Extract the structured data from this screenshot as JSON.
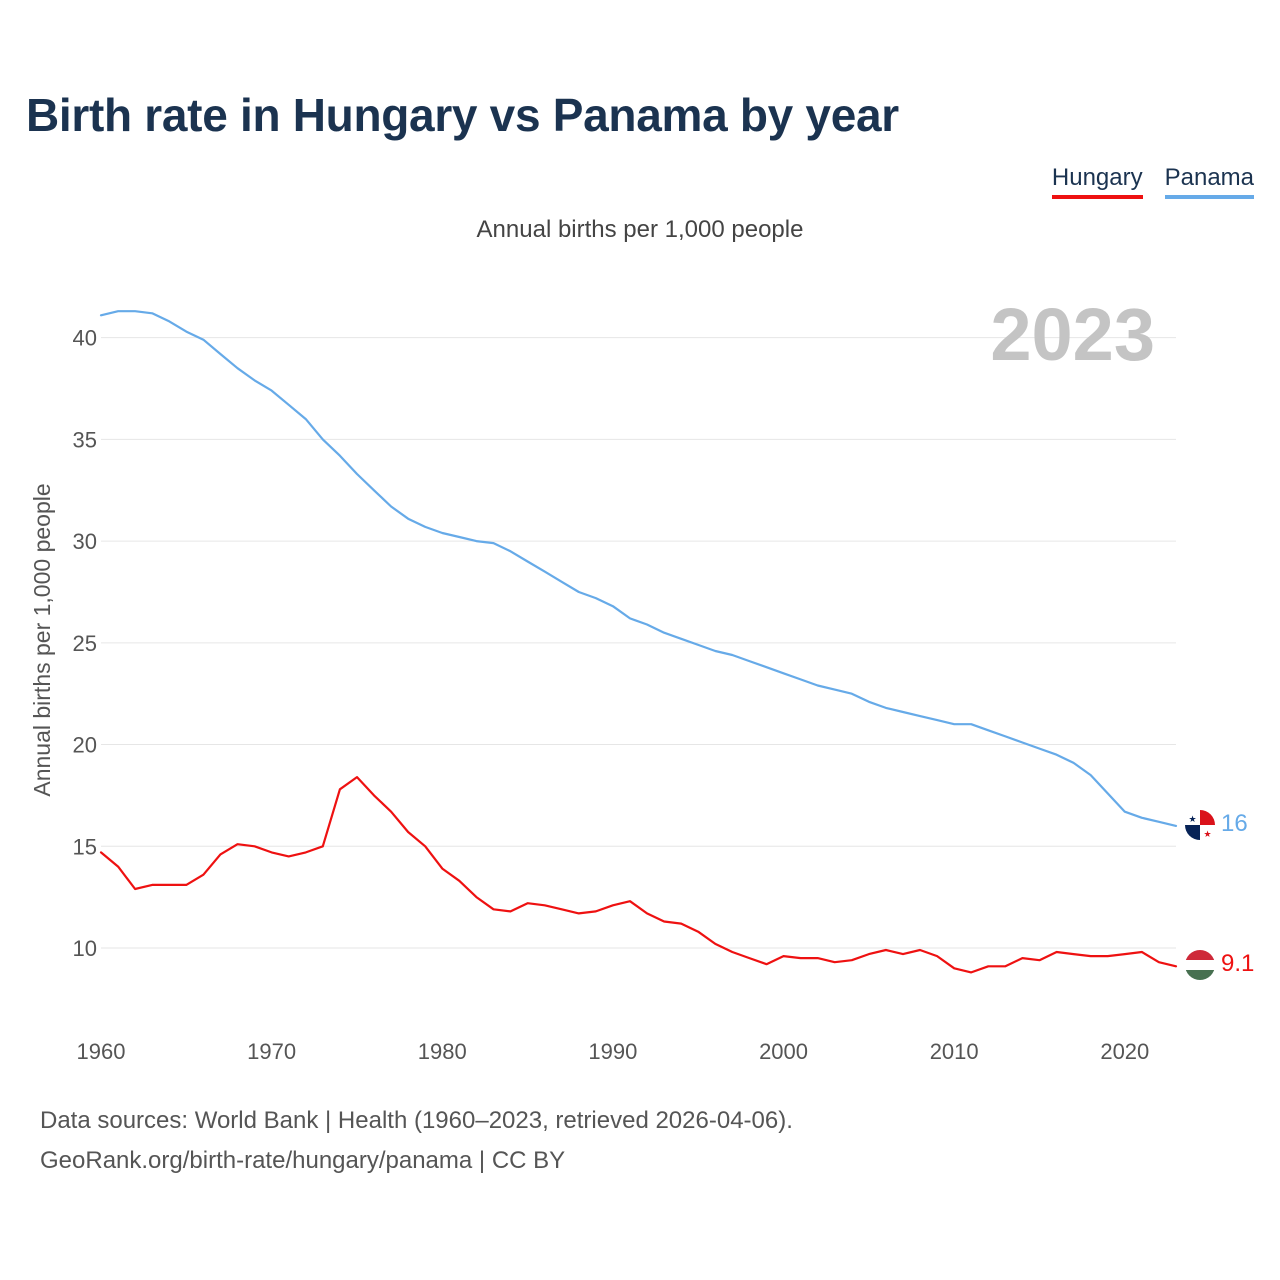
{
  "title": "Birth rate in Hungary vs Panama by year",
  "subtitle": "Annual births per 1,000 people",
  "year_badge": "2023",
  "footer": {
    "line1": "Data sources: World Bank | Health (1960–2023, retrieved 2026-04-06).",
    "line2": "GeoRank.org/birth-rate/hungary/panama | CC BY"
  },
  "colors": {
    "hungary": "#ee1111",
    "panama": "#66aae8",
    "grid": "#e6e6e6",
    "tick": "#555555",
    "badge": "#c4c4c4"
  },
  "chart_data": {
    "type": "line",
    "title": "Birth rate in Hungary vs Panama by year",
    "xlabel": "",
    "ylabel": "Annual births per 1,000 people",
    "xlim": [
      1960,
      2023
    ],
    "ylim": [
      7,
      42
    ],
    "grid": true,
    "legend": "top-right",
    "x_ticks": [
      1960,
      1970,
      1980,
      1990,
      2000,
      2010,
      2020
    ],
    "y_ticks": [
      10,
      15,
      20,
      25,
      30,
      35,
      40
    ],
    "series": [
      {
        "name": "Hungary",
        "end_label": "9.1",
        "x": [
          1960,
          1961,
          1962,
          1963,
          1964,
          1965,
          1966,
          1967,
          1968,
          1969,
          1970,
          1971,
          1972,
          1973,
          1974,
          1975,
          1976,
          1977,
          1978,
          1979,
          1980,
          1981,
          1982,
          1983,
          1984,
          1985,
          1986,
          1987,
          1988,
          1989,
          1990,
          1991,
          1992,
          1993,
          1994,
          1995,
          1996,
          1997,
          1998,
          1999,
          2000,
          2001,
          2002,
          2003,
          2004,
          2005,
          2006,
          2007,
          2008,
          2009,
          2010,
          2011,
          2012,
          2013,
          2014,
          2015,
          2016,
          2017,
          2018,
          2019,
          2020,
          2021,
          2022,
          2023
        ],
        "values": [
          14.7,
          14.0,
          12.9,
          13.1,
          13.1,
          13.1,
          13.6,
          14.6,
          15.1,
          15.0,
          14.7,
          14.5,
          14.7,
          15.0,
          17.8,
          18.4,
          17.5,
          16.7,
          15.7,
          15.0,
          13.9,
          13.3,
          12.5,
          11.9,
          11.8,
          12.2,
          12.1,
          11.9,
          11.7,
          11.8,
          12.1,
          12.3,
          11.7,
          11.3,
          11.2,
          10.8,
          10.2,
          9.8,
          9.5,
          9.2,
          9.6,
          9.5,
          9.5,
          9.3,
          9.4,
          9.7,
          9.9,
          9.7,
          9.9,
          9.6,
          9.0,
          8.8,
          9.1,
          9.1,
          9.5,
          9.4,
          9.8,
          9.7,
          9.6,
          9.6,
          9.7,
          9.8,
          9.3,
          9.1
        ]
      },
      {
        "name": "Panama",
        "end_label": "16",
        "x": [
          1960,
          1961,
          1962,
          1963,
          1964,
          1965,
          1966,
          1967,
          1968,
          1969,
          1970,
          1971,
          1972,
          1973,
          1974,
          1975,
          1976,
          1977,
          1978,
          1979,
          1980,
          1981,
          1982,
          1983,
          1984,
          1985,
          1986,
          1987,
          1988,
          1989,
          1990,
          1991,
          1992,
          1993,
          1994,
          1995,
          1996,
          1997,
          1998,
          1999,
          2000,
          2001,
          2002,
          2003,
          2004,
          2005,
          2006,
          2007,
          2008,
          2009,
          2010,
          2011,
          2012,
          2013,
          2014,
          2015,
          2016,
          2017,
          2018,
          2019,
          2020,
          2021,
          2022,
          2023
        ],
        "values": [
          41.1,
          41.3,
          41.3,
          41.2,
          40.8,
          40.3,
          39.9,
          39.2,
          38.5,
          37.9,
          37.4,
          36.7,
          36.0,
          35.0,
          34.2,
          33.3,
          32.5,
          31.7,
          31.1,
          30.7,
          30.4,
          30.2,
          30.0,
          29.9,
          29.5,
          29.0,
          28.5,
          28.0,
          27.5,
          27.2,
          26.8,
          26.2,
          25.9,
          25.5,
          25.2,
          24.9,
          24.6,
          24.4,
          24.1,
          23.8,
          23.5,
          23.2,
          22.9,
          22.7,
          22.5,
          22.1,
          21.8,
          21.6,
          21.4,
          21.2,
          21.0,
          21.0,
          20.7,
          20.4,
          20.1,
          19.8,
          19.5,
          19.1,
          18.5,
          17.6,
          16.7,
          16.4,
          16.2,
          16.0
        ]
      }
    ]
  }
}
